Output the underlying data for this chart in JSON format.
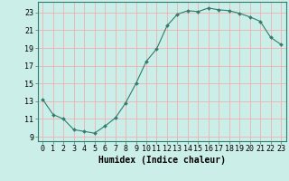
{
  "x": [
    0,
    1,
    2,
    3,
    4,
    5,
    6,
    7,
    8,
    9,
    10,
    11,
    12,
    13,
    14,
    15,
    16,
    17,
    18,
    19,
    20,
    21,
    22,
    23
  ],
  "y": [
    13.2,
    11.5,
    11.0,
    9.8,
    9.6,
    9.4,
    10.2,
    11.1,
    12.8,
    15.0,
    17.5,
    18.9,
    21.5,
    22.8,
    23.2,
    23.1,
    23.5,
    23.3,
    23.2,
    22.9,
    22.5,
    22.0,
    20.2,
    19.4
  ],
  "line_color": "#2e7d6e",
  "bg_color": "#cceee8",
  "grid_color": "#f0b0b0",
  "xlabel": "Humidex (Indice chaleur)",
  "yticks": [
    9,
    11,
    13,
    15,
    17,
    19,
    21,
    23
  ],
  "xticks": [
    0,
    1,
    2,
    3,
    4,
    5,
    6,
    7,
    8,
    9,
    10,
    11,
    12,
    13,
    14,
    15,
    16,
    17,
    18,
    19,
    20,
    21,
    22,
    23
  ],
  "xlim": [
    -0.5,
    23.5
  ],
  "ylim": [
    8.5,
    24.2
  ],
  "label_fontsize": 7,
  "tick_fontsize": 6
}
